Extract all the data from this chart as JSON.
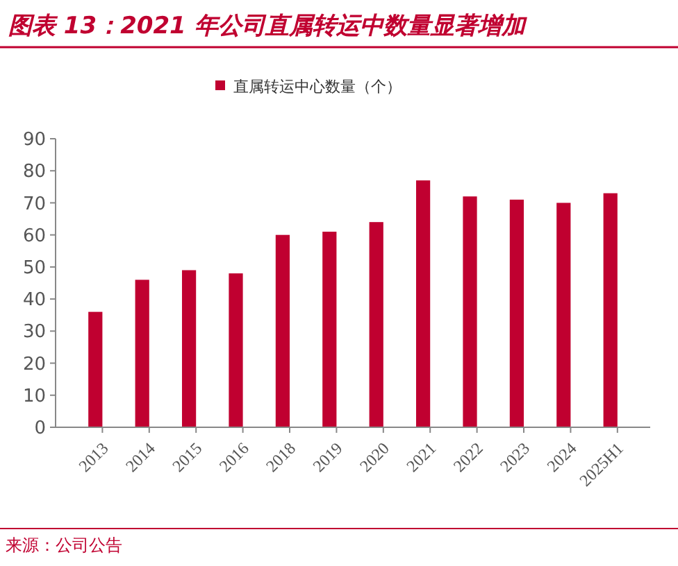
{
  "chart_data": {
    "type": "bar",
    "title": "图表 13：2021 年公司直属转运中数量显著增加",
    "categories": [
      "2013",
      "2014",
      "2015",
      "2016",
      "2018",
      "2019",
      "2020",
      "2021",
      "2022",
      "2023",
      "2024",
      "2025H1"
    ],
    "series": [
      {
        "name": "直属转运中心数量（个）",
        "color": "#c00030",
        "values": [
          36,
          46,
          49,
          48,
          60,
          61,
          64,
          77,
          72,
          71,
          70,
          73
        ]
      }
    ],
    "ylim": [
      0,
      90
    ],
    "yticks": [
      0,
      10,
      20,
      30,
      40,
      50,
      60,
      70,
      80,
      90
    ],
    "legend": "top",
    "grid": false,
    "annotations": [
      "来源：公司公告"
    ]
  }
}
